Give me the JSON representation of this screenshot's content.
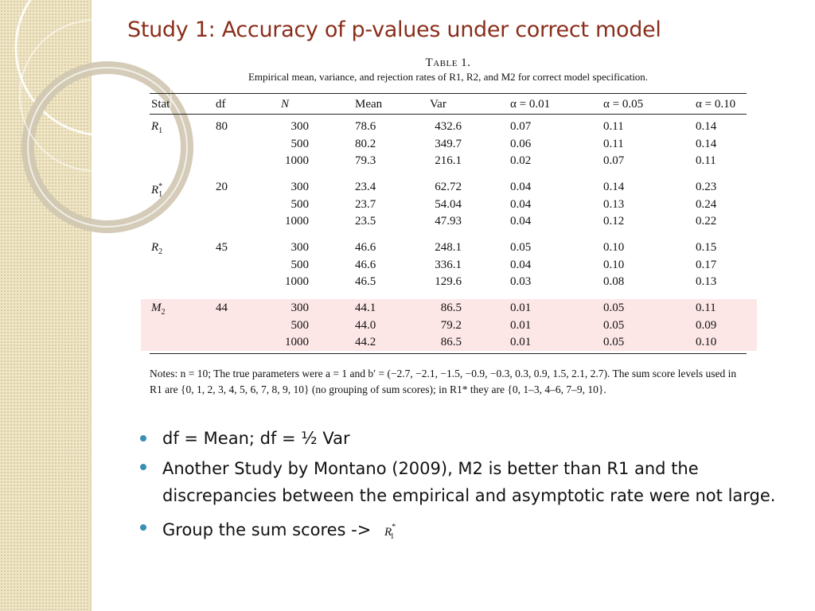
{
  "slide": {
    "title": "Study 1: Accuracy of p-values under correct model",
    "accent_color": "#8a2e1b",
    "bullet_color": "#3b8fb5",
    "sidebar_color": "#efe6c7"
  },
  "table": {
    "name": "Table 1.",
    "description": "Empirical mean, variance, and rejection rates of R1, R2, and M2 for correct model specification.",
    "headers": {
      "stat": "Stat",
      "df": "df",
      "n": "N",
      "mean": "Mean",
      "var": "Var",
      "a01": "α = 0.01",
      "a05": "α = 0.05",
      "a10": "α = 0.10"
    },
    "groups": [
      {
        "stat": "R1",
        "df": "80",
        "rows": [
          {
            "n": "300",
            "mean": "78.6",
            "var": "432.6",
            "a01": "0.07",
            "a05": "0.11",
            "a10": "0.14"
          },
          {
            "n": "500",
            "mean": "80.2",
            "var": "349.7",
            "a01": "0.06",
            "a05": "0.11",
            "a10": "0.14"
          },
          {
            "n": "1000",
            "mean": "79.3",
            "var": "216.1",
            "a01": "0.02",
            "a05": "0.07",
            "a10": "0.11"
          }
        ]
      },
      {
        "stat": "R1*",
        "df": "20",
        "rows": [
          {
            "n": "300",
            "mean": "23.4",
            "var": "62.72",
            "a01": "0.04",
            "a05": "0.14",
            "a10": "0.23"
          },
          {
            "n": "500",
            "mean": "23.7",
            "var": "54.04",
            "a01": "0.04",
            "a05": "0.13",
            "a10": "0.24"
          },
          {
            "n": "1000",
            "mean": "23.5",
            "var": "47.93",
            "a01": "0.04",
            "a05": "0.12",
            "a10": "0.22"
          }
        ]
      },
      {
        "stat": "R2",
        "df": "45",
        "rows": [
          {
            "n": "300",
            "mean": "46.6",
            "var": "248.1",
            "a01": "0.05",
            "a05": "0.10",
            "a10": "0.15"
          },
          {
            "n": "500",
            "mean": "46.6",
            "var": "336.1",
            "a01": "0.04",
            "a05": "0.10",
            "a10": "0.17"
          },
          {
            "n": "1000",
            "mean": "46.5",
            "var": "129.6",
            "a01": "0.03",
            "a05": "0.08",
            "a10": "0.13"
          }
        ]
      },
      {
        "stat": "M2",
        "df": "44",
        "highlighted": true,
        "rows": [
          {
            "n": "300",
            "mean": "44.1",
            "var": "86.5",
            "a01": "0.01",
            "a05": "0.05",
            "a10": "0.11"
          },
          {
            "n": "500",
            "mean": "44.0",
            "var": "79.2",
            "a01": "0.01",
            "a05": "0.05",
            "a10": "0.09"
          },
          {
            "n": "1000",
            "mean": "44.2",
            "var": "86.5",
            "a01": "0.01",
            "a05": "0.05",
            "a10": "0.10"
          }
        ]
      }
    ],
    "notes": "Notes: n = 10; The true parameters were a = 1 and b′ = (−2.7, −2.1, −1.5, −0.9, −0.3, 0.3, 0.9, 1.5, 2.1, 2.7). The sum score levels used in R1 are {0, 1, 2, 3, 4, 5, 6, 7, 8, 9, 10} (no grouping of sum scores); in R1* they are {0, 1–3, 4–6, 7–9, 10}."
  },
  "bullets": [
    "df = Mean; df = ½ Var",
    "Another Study by Montano (2009), M2 is better than R1 and the discrepancies between the empirical and asymptotic rate were not large.",
    "Group the sum scores ->"
  ],
  "bullet3_symbol": "R1*"
}
